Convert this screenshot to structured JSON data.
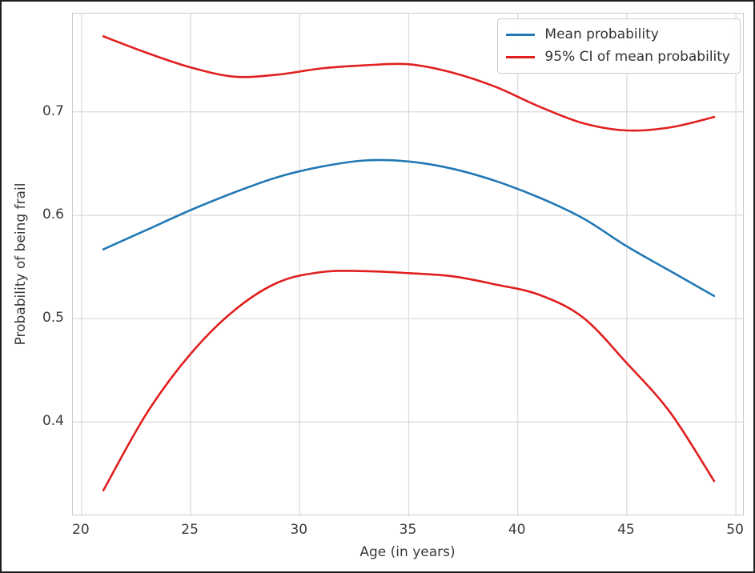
{
  "figure": {
    "background": "#ffffff",
    "frame_color": "#1f1f1f",
    "grid_color": "#d9d9d9",
    "spine_color": "#cccccc",
    "text_color": "#3a3a3a"
  },
  "chart_data": {
    "type": "line",
    "title": "",
    "xlabel": "Age (in years)",
    "ylabel": "Probability of being frail",
    "grid": true,
    "legend_position": "upper right",
    "xlim": [
      19.6,
      50.4
    ],
    "ylim": [
      0.309,
      0.795
    ],
    "x_ticks": [
      20,
      25,
      30,
      35,
      40,
      45,
      50
    ],
    "y_ticks": [
      0.4,
      0.5,
      0.6,
      0.7
    ],
    "x": [
      21,
      23,
      25,
      27,
      29,
      31,
      33,
      35,
      37,
      39,
      41,
      43,
      45,
      47,
      49
    ],
    "series": [
      {
        "name": "Mean probability",
        "role": "mean",
        "color": "#2279b5",
        "in_legend": true,
        "values": [
          0.567,
          0.586,
          0.605,
          0.622,
          0.637,
          0.647,
          0.653,
          0.652,
          0.645,
          0.633,
          0.617,
          0.597,
          0.57,
          0.546,
          0.522
        ]
      },
      {
        "name": "95% CI of mean probability",
        "role": "ci-upper",
        "color": "#e01f1f",
        "in_legend": true,
        "values": [
          0.773,
          0.757,
          0.743,
          0.734,
          0.736,
          0.742,
          0.745,
          0.746,
          0.738,
          0.724,
          0.705,
          0.689,
          0.682,
          0.685,
          0.695
        ]
      },
      {
        "name": "95% CI of mean probability",
        "role": "ci-lower",
        "color": "#e01f1f",
        "in_legend": false,
        "values": [
          0.334,
          0.409,
          0.466,
          0.508,
          0.535,
          0.545,
          0.546,
          0.544,
          0.541,
          0.533,
          0.523,
          0.501,
          0.457,
          0.409,
          0.343
        ]
      }
    ]
  }
}
